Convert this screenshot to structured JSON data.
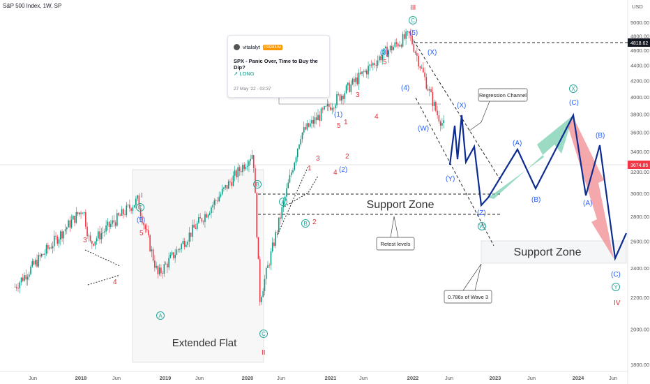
{
  "header": {
    "title": "S&P 500 Index, 1W, SP"
  },
  "currency": "USD",
  "y_ticks": [
    "5000.00",
    "4800.00",
    "4600.00",
    "4400.00",
    "4200.00",
    "4000.00",
    "3800.00",
    "3600.00",
    "3400.00",
    "3200.00",
    "3000.00",
    "2800.00",
    "2600.00",
    "2400.00",
    "2200.00",
    "2000.00",
    "1800.00"
  ],
  "x_ticks": [
    "Jun",
    "2018",
    "Jun",
    "2019",
    "Jun",
    "2020",
    "Jun",
    "2021",
    "Jun",
    "2022",
    "Jun",
    "2023",
    "Jun",
    "2024",
    "Jun"
  ],
  "price_tags": {
    "high": "4818.62",
    "last": "3674.85"
  },
  "idea_card": {
    "author": "vitalalyt",
    "badge": "PREMIUM",
    "title": "SPX - Panic Over, Time to Buy the Dip?",
    "direction": "↗ LONG",
    "date": "27 May '22 - 03:37"
  },
  "annotations": {
    "extended_flat": "Extended Flat",
    "support_zone_1": "Support Zone",
    "support_zone_2": "Support Zone",
    "regression_channel": "Regression Channel",
    "retest_levels": "Retest levels",
    "fib_786": "0.786x of Wave 3"
  },
  "wave_labels": {
    "roman_I": "I",
    "roman_II": "II",
    "roman_III": "III",
    "roman_IV": "IV",
    "C": "C",
    "A": "A",
    "B": "B",
    "W": "W",
    "X": "X",
    "Y": "Y",
    "p5": "(5)",
    "p1": "(1)",
    "p2": "(2)",
    "p3": "(3)",
    "p4": "(4)",
    "pA": "(A)",
    "pB": "(B)",
    "pC": "(C)",
    "pX": "(X)",
    "pY": "(Y)",
    "pW": "(W)",
    "pZ": "(Z)",
    "n1": "1",
    "n2": "2",
    "n3": "3",
    "n4": "4",
    "n5": "5"
  },
  "colors": {
    "up": "#089981",
    "down": "#f23645",
    "projection": "#0d2c91",
    "red_label": "#e0303a",
    "blue_label": "#2962ff",
    "green_label": "#26a69a"
  },
  "chart_data": {
    "type": "candlestick",
    "title": "S&P 500 Index, 1W, SP",
    "ylim": [
      1800,
      5000
    ],
    "y_scale": "log",
    "key_points": [
      {
        "date": "2017-03",
        "value": 2270
      },
      {
        "date": "2018-01",
        "value": 2870
      },
      {
        "date": "2018-02",
        "value": 2580
      },
      {
        "date": "2018-09",
        "value": 2940
      },
      {
        "date": "2018-12",
        "value": 2350
      },
      {
        "date": "2020-02",
        "value": 3390
      },
      {
        "date": "2020-03",
        "value": 2190
      },
      {
        "date": "2020-09",
        "value": 3580
      },
      {
        "date": "2021-09",
        "value": 4540
      },
      {
        "date": "2022-01",
        "value": 4818.62
      },
      {
        "date": "2022-05",
        "value": 3810
      },
      {
        "date": "2022-06",
        "value": 3674.85
      }
    ],
    "projection": [
      {
        "date": "2022-10",
        "value": 3300
      },
      {
        "date": "2023-02",
        "value": 3820
      },
      {
        "date": "2023-06",
        "value": 3420
      },
      {
        "date": "2023-12",
        "value": 4180
      },
      {
        "date": "2024-02",
        "value": 3380
      },
      {
        "date": "2024-04",
        "value": 3870
      },
      {
        "date": "2024-06",
        "value": 2760
      },
      {
        "date": "2024-07",
        "value": 3020
      }
    ]
  }
}
